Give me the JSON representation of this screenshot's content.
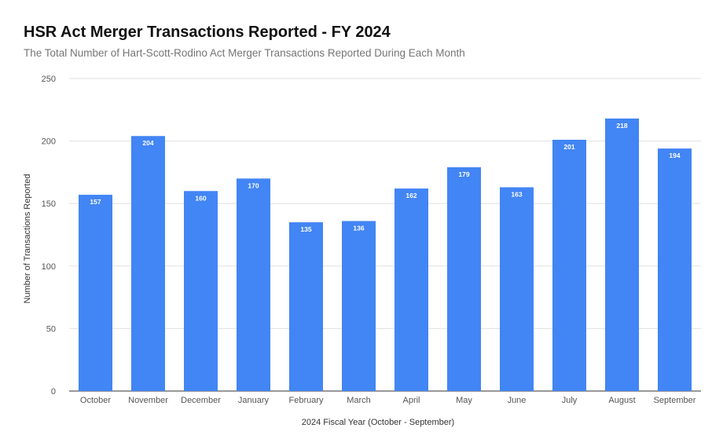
{
  "chart_data": {
    "type": "bar",
    "title": "HSR Act Merger Transactions Reported - FY 2024",
    "subtitle": "The Total Number of Hart-Scott-Rodino Act Merger Transactions Reported During Each Month",
    "xlabel": "2024 Fiscal Year (October - September)",
    "ylabel": "Number of Transactions Reported",
    "categories": [
      "October",
      "November",
      "December",
      "January",
      "February",
      "March",
      "April",
      "May",
      "June",
      "July",
      "August",
      "September"
    ],
    "values": [
      157,
      204,
      160,
      170,
      135,
      136,
      162,
      179,
      163,
      201,
      218,
      194
    ],
    "ylim": [
      0,
      250
    ],
    "yticks": [
      0,
      50,
      100,
      150,
      200,
      250
    ],
    "grid": true,
    "legend": "none",
    "bar_color": "#4285F4",
    "data_labels": true
  }
}
